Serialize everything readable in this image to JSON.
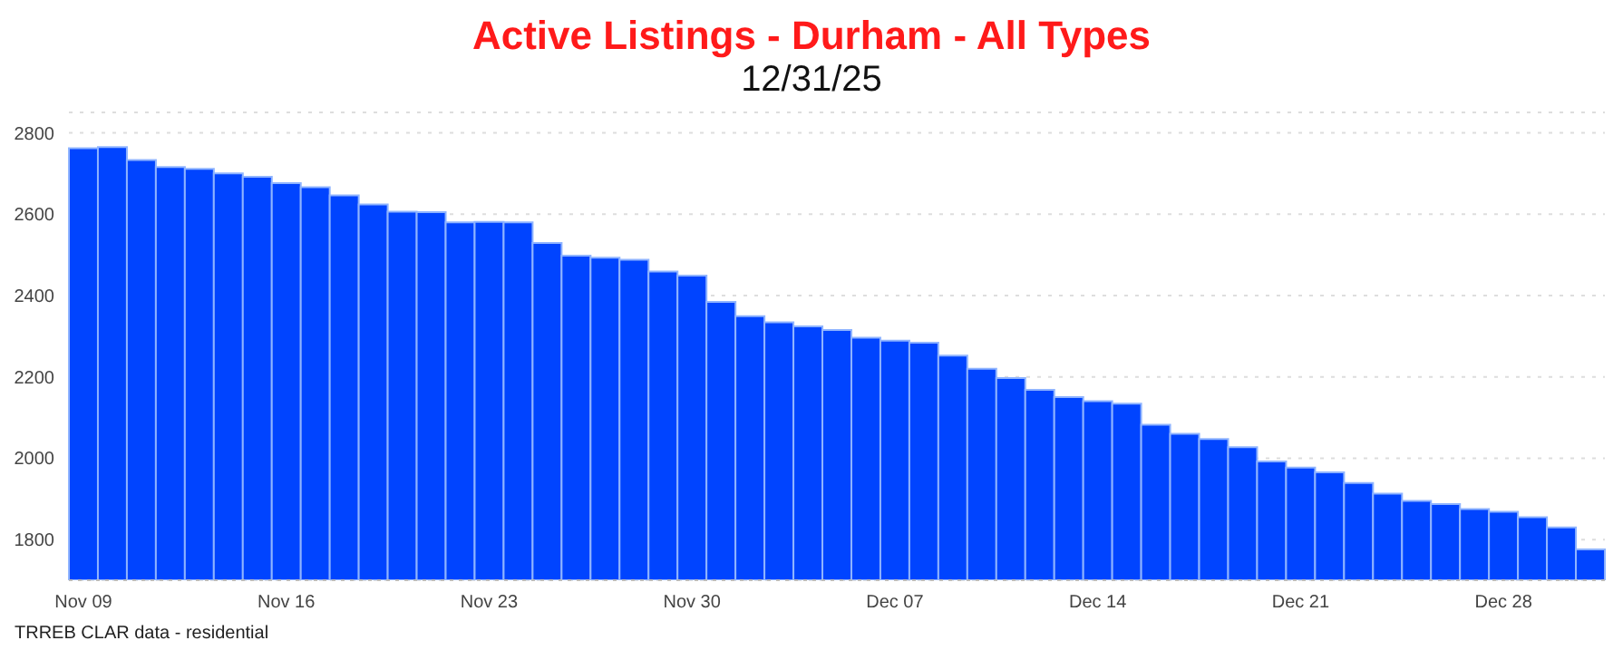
{
  "chart_data": {
    "type": "bar",
    "title": "Active Listings - Durham - All Types",
    "subtitle": "12/31/25",
    "categories": [
      "Nov 09",
      null,
      null,
      null,
      null,
      null,
      null,
      "Nov 16",
      null,
      null,
      null,
      null,
      null,
      null,
      "Nov 23",
      null,
      null,
      null,
      null,
      null,
      null,
      "Nov 30",
      null,
      null,
      null,
      null,
      null,
      null,
      "Dec 07",
      null,
      null,
      null,
      null,
      null,
      null,
      "Dec 14",
      null,
      null,
      null,
      null,
      null,
      null,
      "Dec 21",
      null,
      null,
      null,
      null,
      null,
      null,
      "Dec 28",
      null,
      null,
      null
    ],
    "values": [
      2762,
      2765,
      2733,
      2716,
      2711,
      2700,
      2692,
      2676,
      2666,
      2646,
      2624,
      2606,
      2605,
      2580,
      2581,
      2580,
      2529,
      2498,
      2493,
      2488,
      2459,
      2449,
      2384,
      2349,
      2334,
      2324,
      2315,
      2296,
      2289,
      2284,
      2252,
      2220,
      2197,
      2168,
      2150,
      2140,
      2134,
      2082,
      2060,
      2047,
      2027,
      1992,
      1977,
      1965,
      1939,
      1913,
      1895,
      1887,
      1875,
      1868,
      1855,
      1830,
      1776
    ],
    "color": "#0044ff",
    "ylim": [
      1700,
      2850
    ],
    "yticks": [
      1800,
      2000,
      2200,
      2400,
      2600,
      2800
    ],
    "grid": "y",
    "legend": false,
    "annotations": [
      "TRREB CLAR data - residential"
    ]
  }
}
